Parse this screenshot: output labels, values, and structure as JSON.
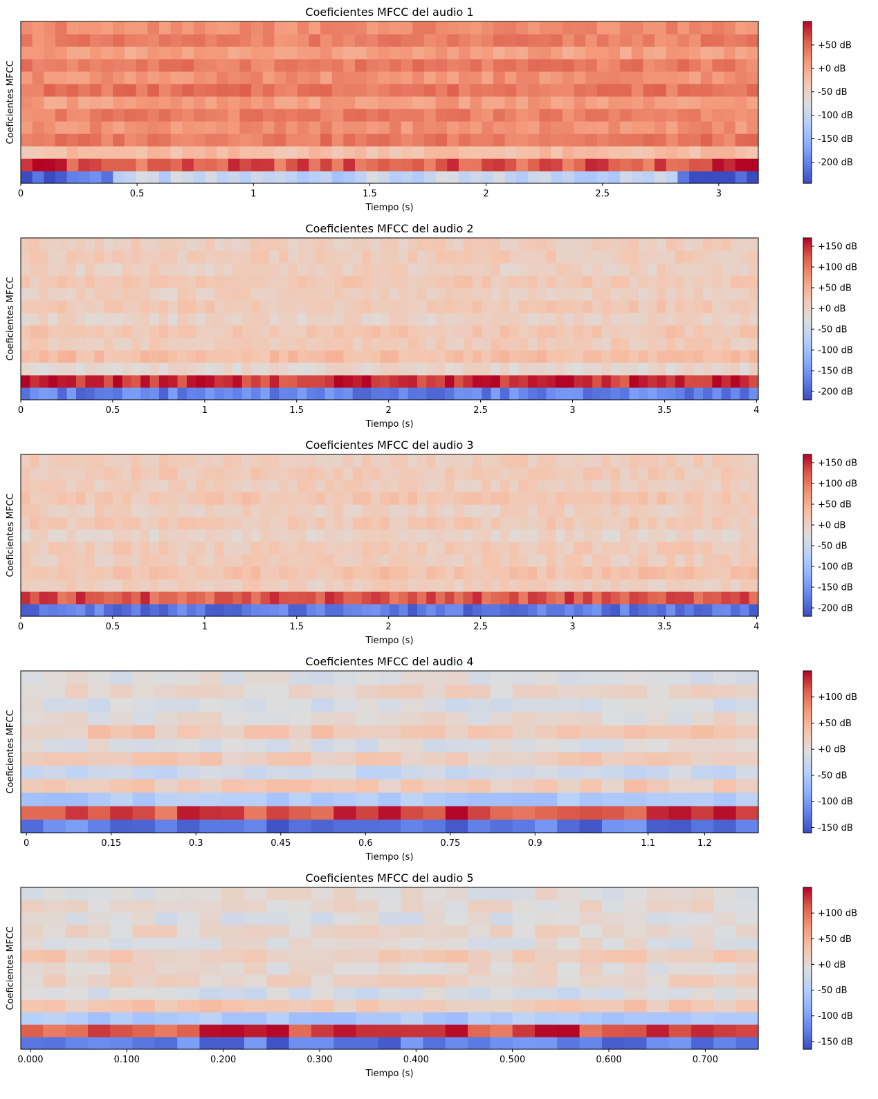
{
  "chart_data": [
    {
      "type": "heatmap",
      "title": "Coeficientes MFCC del audio 1",
      "xlabel": "Tiempo (s)",
      "ylabel": "Coeficientes MFCC",
      "n_coefficients": 13,
      "xlim": [
        0,
        3.17
      ],
      "x_ticks": [
        0,
        0.5,
        1,
        1.5,
        2,
        2.5,
        3
      ],
      "x_tick_labels": [
        "0",
        "0.5",
        "1",
        "1.5",
        "2",
        "2.5",
        "3"
      ],
      "colorbar_range": [
        -245,
        100
      ],
      "colorbar_ticks": [
        50,
        0,
        -50,
        -100,
        -150,
        -200
      ],
      "colorbar_tick_labels": [
        "+50 dB",
        "+0 dB",
        "-50 dB",
        "-100 dB",
        "-150 dB",
        "-200 dB"
      ],
      "colormap": "coolwarm",
      "row_values_db": [
        -195,
        55,
        -25,
        38,
        20,
        33,
        8,
        42,
        18,
        36,
        6,
        32,
        24
      ],
      "frames": 64
    },
    {
      "type": "heatmap",
      "title": "Coeficientes MFCC del audio 2",
      "xlabel": "Tiempo (s)",
      "ylabel": "Coeficientes MFCC",
      "n_coefficients": 13,
      "xlim": [
        0,
        4.01
      ],
      "x_ticks": [
        0,
        0.5,
        1,
        1.5,
        2,
        2.5,
        3,
        3.5,
        4
      ],
      "x_tick_labels": [
        "0",
        "0.5",
        "1",
        "1.5",
        "2",
        "2.5",
        "3",
        "3.5",
        "4"
      ],
      "colorbar_range": [
        -220,
        170
      ],
      "colorbar_ticks": [
        150,
        100,
        50,
        0,
        -50,
        -100,
        -150,
        -200
      ],
      "colorbar_tick_labels": [
        "+150 dB",
        "+100 dB",
        "+50 dB",
        "+0 dB",
        "-50 dB",
        "-100 dB",
        "-150 dB",
        "-200 dB"
      ],
      "colormap": "coolwarm",
      "row_values_db": [
        -170,
        150,
        -8,
        30,
        10,
        18,
        -2,
        14,
        4,
        16,
        2,
        10,
        6
      ],
      "frames": 80
    },
    {
      "type": "heatmap",
      "title": "Coeficientes MFCC del audio 3",
      "xlabel": "Tiempo (s)",
      "ylabel": "Coeficientes MFCC",
      "n_coefficients": 13,
      "xlim": [
        0,
        4.01
      ],
      "x_ticks": [
        0,
        0.5,
        1,
        1.5,
        2,
        2.5,
        3,
        3.5,
        4
      ],
      "x_tick_labels": [
        "0",
        "0.5",
        "1",
        "1.5",
        "2",
        "2.5",
        "3",
        "3.5",
        "4"
      ],
      "colorbar_range": [
        -220,
        170
      ],
      "colorbar_ticks": [
        150,
        100,
        50,
        0,
        -50,
        -100,
        -150,
        -200
      ],
      "colorbar_tick_labels": [
        "+150 dB",
        "+100 dB",
        "+50 dB",
        "+0 dB",
        "-50 dB",
        "-100 dB",
        "-150 dB",
        "-200 dB"
      ],
      "colormap": "coolwarm",
      "row_values_db": [
        -180,
        125,
        6,
        25,
        8,
        12,
        -4,
        14,
        4,
        18,
        8,
        12,
        10
      ],
      "frames": 80
    },
    {
      "type": "heatmap",
      "title": "Coeficientes MFCC del audio 4",
      "xlabel": "Tiempo (s)",
      "ylabel": "Coeficientes MFCC",
      "n_coefficients": 12,
      "xlim": [
        -0.01,
        1.295
      ],
      "x_ticks": [
        0,
        0.15,
        0.3,
        0.45,
        0.6,
        0.75,
        0.9,
        1.1,
        1.2
      ],
      "x_tick_labels": [
        "0",
        "0.15",
        "0.3",
        "0.45",
        "0.6",
        "0.75",
        "0.9",
        "1.1",
        "1.2"
      ],
      "colorbar_range": [
        -160,
        150
      ],
      "colorbar_ticks": [
        100,
        50,
        0,
        -50,
        -100,
        -150
      ],
      "colorbar_tick_labels": [
        "+100 dB",
        "+50 dB",
        "+0 dB",
        "-50 dB",
        "-100 dB",
        "-150 dB"
      ],
      "colormap": "coolwarm",
      "row_values_db": [
        -125,
        120,
        -50,
        25,
        -25,
        22,
        -6,
        26,
        2,
        -10,
        10,
        -4
      ],
      "frames": 33
    },
    {
      "type": "heatmap",
      "title": "Coeficientes MFCC del audio 5",
      "xlabel": "Tiempo (s)",
      "ylabel": "Coeficientes MFCC",
      "n_coefficients": 13,
      "xlim": [
        -0.01,
        0.755
      ],
      "x_ticks": [
        0,
        0.1,
        0.2,
        0.3,
        0.4,
        0.5,
        0.6,
        0.7
      ],
      "x_tick_labels": [
        "0.000",
        "0.100",
        "0.200",
        "0.300",
        "0.400",
        "0.500",
        "0.600",
        "0.700"
      ],
      "colorbar_range": [
        -165,
        150
      ],
      "colorbar_ticks": [
        100,
        50,
        0,
        -50,
        -100,
        -150
      ],
      "colorbar_tick_labels": [
        "+100 dB",
        "+50 dB",
        "+0 dB",
        "-50 dB",
        "-100 dB",
        "-150 dB"
      ],
      "colormap": "coolwarm",
      "row_values_db": [
        -130,
        120,
        -55,
        25,
        -15,
        10,
        2,
        20,
        -4,
        6,
        -8,
        2,
        -2
      ],
      "frames": 33
    }
  ]
}
